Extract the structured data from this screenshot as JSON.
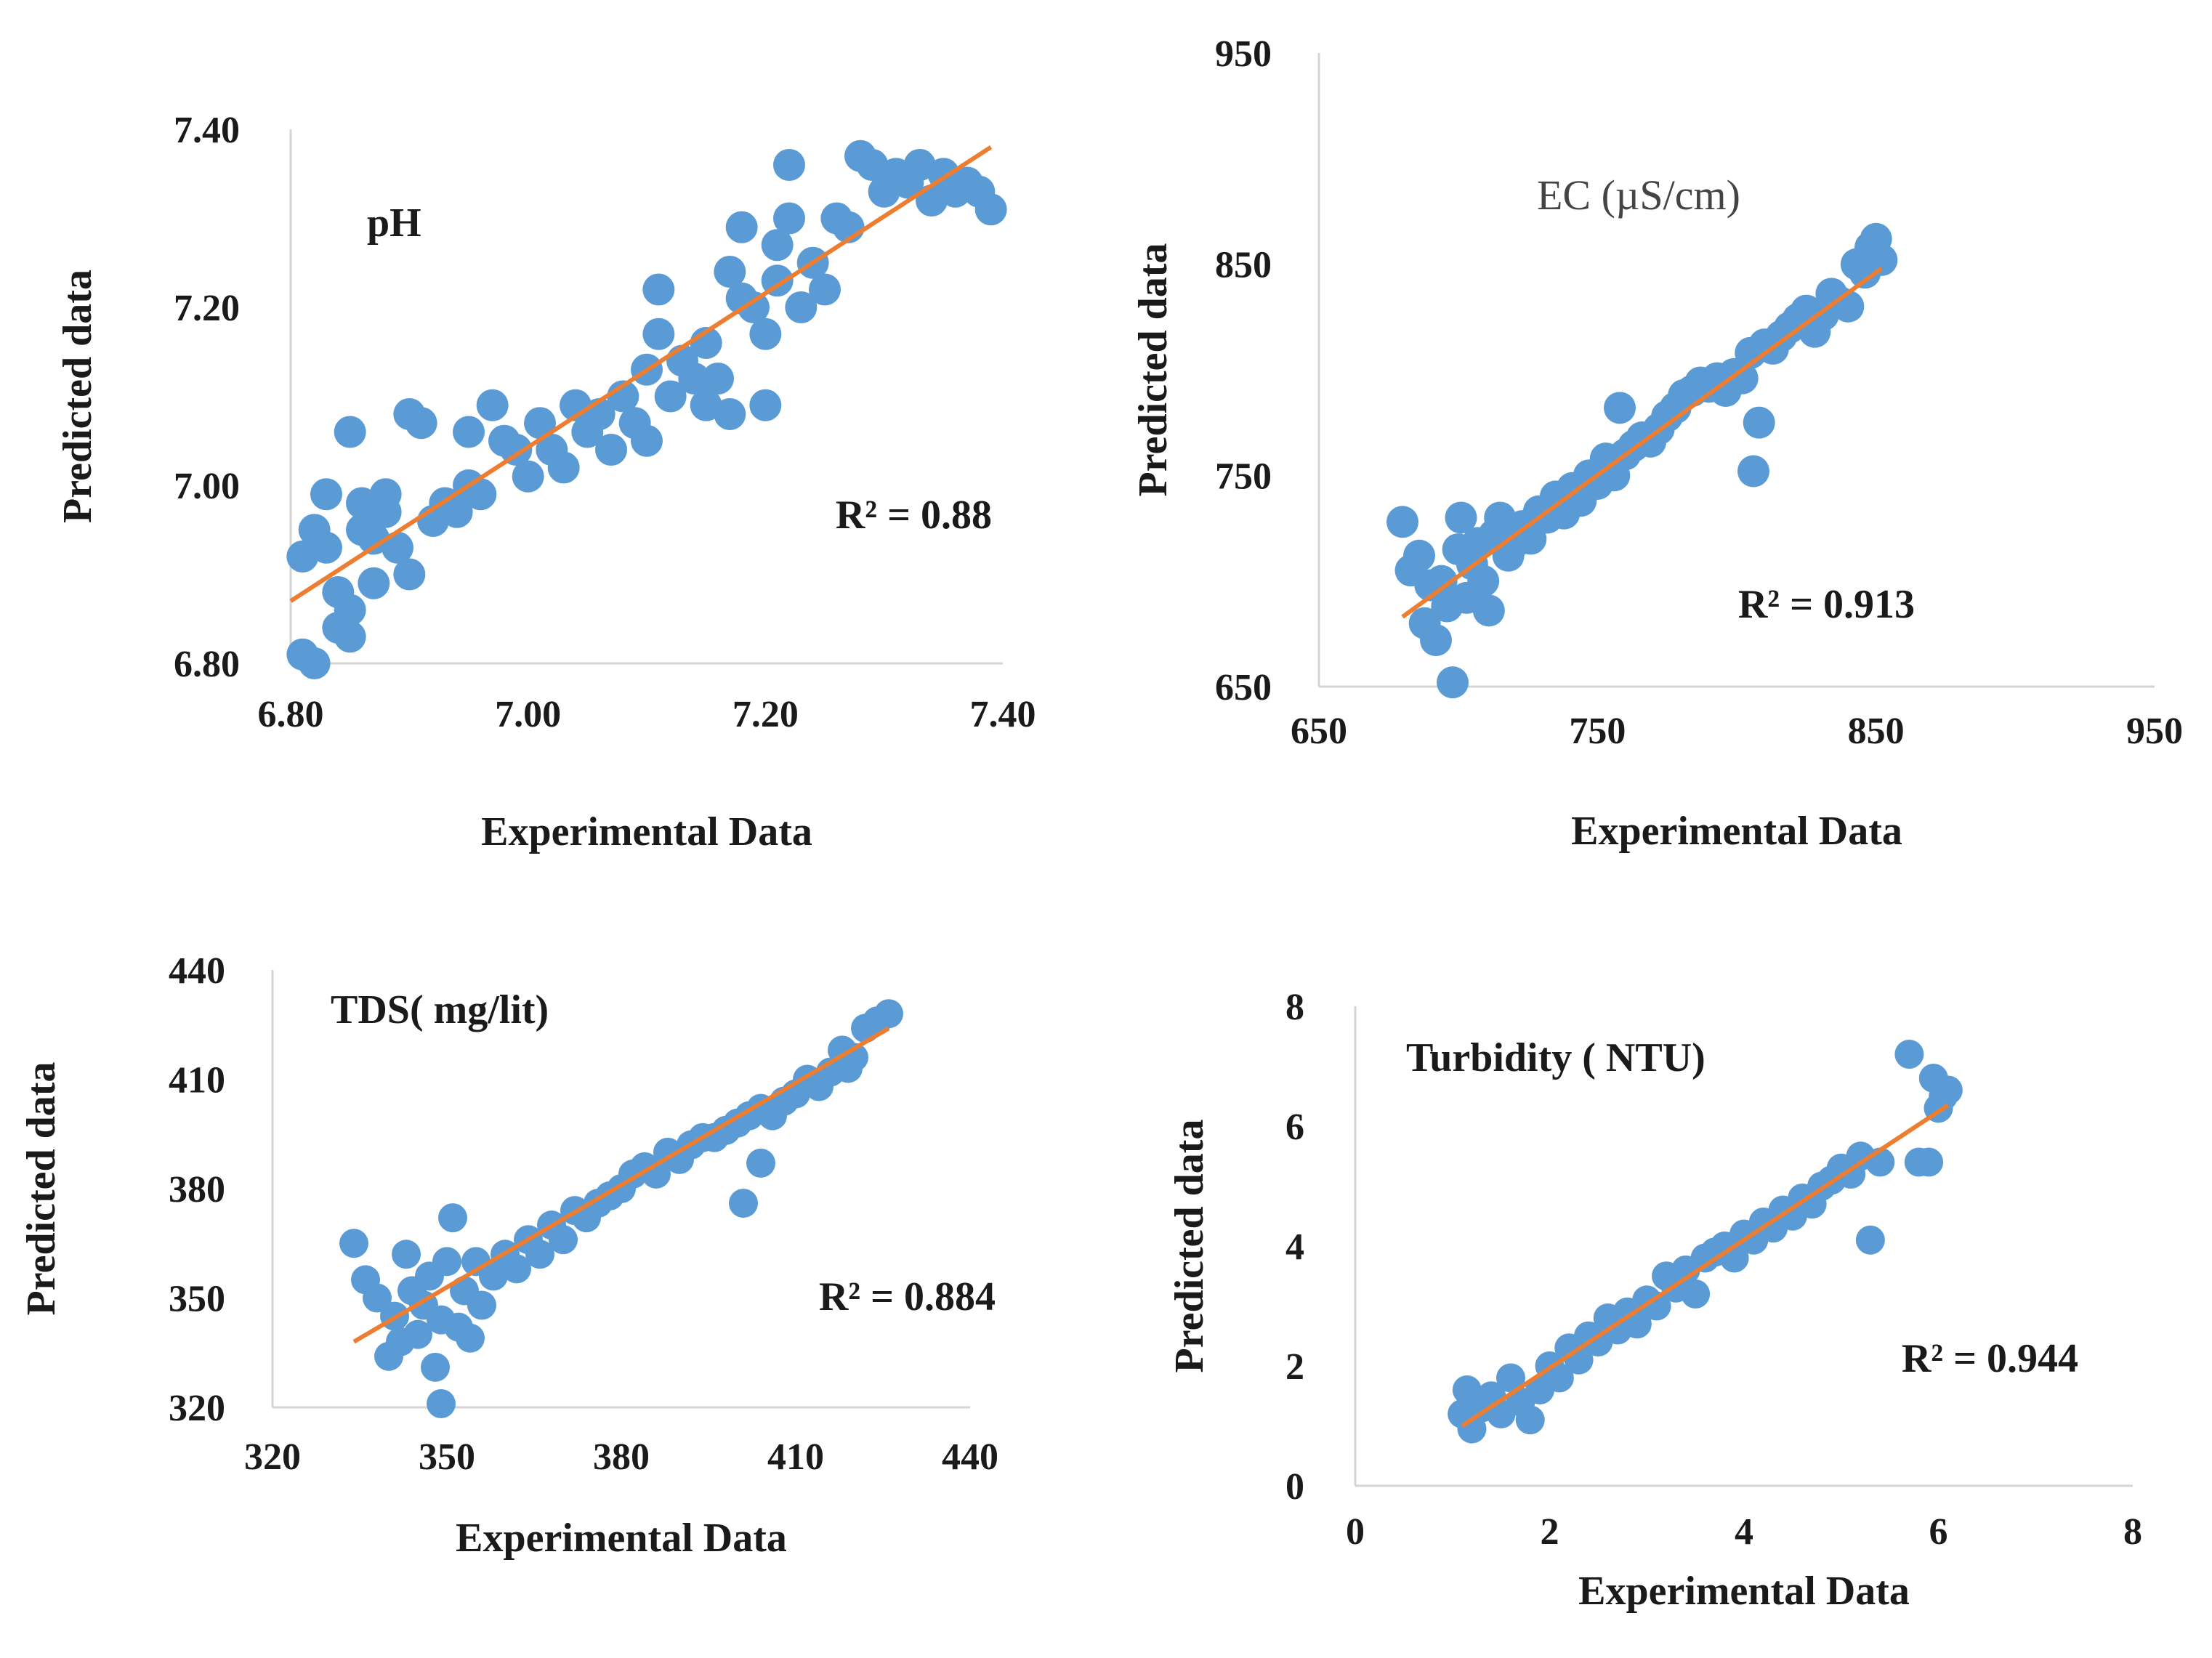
{
  "chart_data": [
    {
      "type": "scatter",
      "title": "pH",
      "title_style": "bold",
      "xlabel": "Experimental Data",
      "ylabel": "Predicted data",
      "xlim": [
        6.8,
        7.4
      ],
      "ylim": [
        6.8,
        7.4
      ],
      "xticks": [
        "6.80",
        "7.00",
        "7.20",
        "7.40"
      ],
      "yticks": [
        "6.80",
        "7.00",
        "7.20",
        "7.40"
      ],
      "r2": "R² = 0.88",
      "point_color": "#5b9bd5",
      "trend_color": "#ed7d31",
      "trendline": [
        [
          6.8,
          6.87
        ],
        [
          7.39,
          7.38
        ]
      ],
      "points": [
        [
          6.81,
          6.81
        ],
        [
          6.82,
          6.8
        ],
        [
          6.81,
          6.92
        ],
        [
          6.82,
          6.95
        ],
        [
          6.83,
          6.93
        ],
        [
          6.83,
          6.99
        ],
        [
          6.84,
          6.88
        ],
        [
          6.84,
          6.84
        ],
        [
          6.85,
          6.83
        ],
        [
          6.85,
          6.86
        ],
        [
          6.85,
          7.06
        ],
        [
          6.86,
          6.95
        ],
        [
          6.86,
          6.98
        ],
        [
          6.87,
          6.89
        ],
        [
          6.87,
          6.94
        ],
        [
          6.88,
          6.97
        ],
        [
          6.88,
          6.99
        ],
        [
          6.89,
          6.93
        ],
        [
          6.9,
          7.08
        ],
        [
          6.91,
          7.07
        ],
        [
          6.9,
          6.9
        ],
        [
          6.92,
          6.96
        ],
        [
          6.93,
          6.98
        ],
        [
          6.94,
          6.97
        ],
        [
          6.95,
          7.0
        ],
        [
          6.95,
          7.06
        ],
        [
          6.96,
          6.99
        ],
        [
          6.97,
          7.09
        ],
        [
          6.98,
          7.05
        ],
        [
          6.99,
          7.04
        ],
        [
          7.0,
          7.01
        ],
        [
          7.01,
          7.07
        ],
        [
          7.02,
          7.04
        ],
        [
          7.03,
          7.02
        ],
        [
          7.04,
          7.09
        ],
        [
          7.05,
          7.06
        ],
        [
          7.06,
          7.08
        ],
        [
          7.07,
          7.04
        ],
        [
          7.08,
          7.1
        ],
        [
          7.09,
          7.07
        ],
        [
          7.1,
          7.13
        ],
        [
          7.1,
          7.05
        ],
        [
          7.11,
          7.22
        ],
        [
          7.11,
          7.17
        ],
        [
          7.12,
          7.1
        ],
        [
          7.13,
          7.14
        ],
        [
          7.14,
          7.12
        ],
        [
          7.15,
          7.16
        ],
        [
          7.15,
          7.09
        ],
        [
          7.16,
          7.12
        ],
        [
          7.17,
          7.08
        ],
        [
          7.17,
          7.24
        ],
        [
          7.18,
          7.21
        ],
        [
          7.18,
          7.29
        ],
        [
          7.19,
          7.2
        ],
        [
          7.2,
          7.17
        ],
        [
          7.2,
          7.09
        ],
        [
          7.21,
          7.27
        ],
        [
          7.21,
          7.23
        ],
        [
          7.22,
          7.36
        ],
        [
          7.22,
          7.3
        ],
        [
          7.23,
          7.2
        ],
        [
          7.24,
          7.25
        ],
        [
          7.25,
          7.22
        ],
        [
          7.26,
          7.3
        ],
        [
          7.27,
          7.29
        ],
        [
          7.28,
          7.37
        ],
        [
          7.29,
          7.36
        ],
        [
          7.3,
          7.33
        ],
        [
          7.31,
          7.35
        ],
        [
          7.32,
          7.34
        ],
        [
          7.33,
          7.36
        ],
        [
          7.34,
          7.32
        ],
        [
          7.35,
          7.35
        ],
        [
          7.36,
          7.33
        ],
        [
          7.37,
          7.34
        ],
        [
          7.38,
          7.33
        ],
        [
          7.39,
          7.31
        ]
      ]
    },
    {
      "type": "scatter",
      "title": "EC (µS/cm)",
      "title_style": "normal",
      "xlabel": "Experimental Data",
      "ylabel": "Predicted data",
      "xlim": [
        650,
        950
      ],
      "ylim": [
        650,
        950
      ],
      "xticks": [
        "650",
        "750",
        "850",
        "950"
      ],
      "yticks": [
        "650",
        "750",
        "850",
        "950"
      ],
      "r2": "R² = 0.913",
      "point_color": "#5b9bd5",
      "trend_color": "#ed7d31",
      "trendline": [
        [
          680,
          683
        ],
        [
          852,
          848
        ]
      ],
      "points": [
        [
          680,
          728
        ],
        [
          683,
          705
        ],
        [
          686,
          712
        ],
        [
          688,
          680
        ],
        [
          690,
          698
        ],
        [
          692,
          672
        ],
        [
          694,
          700
        ],
        [
          696,
          688
        ],
        [
          698,
          652
        ],
        [
          700,
          715
        ],
        [
          701,
          730
        ],
        [
          703,
          692
        ],
        [
          705,
          708
        ],
        [
          707,
          718
        ],
        [
          709,
          700
        ],
        [
          711,
          686
        ],
        [
          713,
          722
        ],
        [
          715,
          730
        ],
        [
          718,
          712
        ],
        [
          720,
          718
        ],
        [
          723,
          726
        ],
        [
          726,
          720
        ],
        [
          729,
          733
        ],
        [
          732,
          730
        ],
        [
          735,
          740
        ],
        [
          738,
          732
        ],
        [
          741,
          744
        ],
        [
          744,
          738
        ],
        [
          747,
          750
        ],
        [
          750,
          746
        ],
        [
          753,
          758
        ],
        [
          756,
          750
        ],
        [
          758,
          782
        ],
        [
          760,
          760
        ],
        [
          763,
          764
        ],
        [
          766,
          768
        ],
        [
          769,
          766
        ],
        [
          772,
          772
        ],
        [
          775,
          778
        ],
        [
          778,
          782
        ],
        [
          781,
          788
        ],
        [
          784,
          790
        ],
        [
          787,
          794
        ],
        [
          790,
          792
        ],
        [
          793,
          796
        ],
        [
          796,
          790
        ],
        [
          799,
          798
        ],
        [
          802,
          796
        ],
        [
          805,
          808
        ],
        [
          806,
          752
        ],
        [
          808,
          775
        ],
        [
          810,
          812
        ],
        [
          813,
          810
        ],
        [
          816,
          816
        ],
        [
          819,
          820
        ],
        [
          822,
          824
        ],
        [
          825,
          828
        ],
        [
          828,
          818
        ],
        [
          831,
          826
        ],
        [
          834,
          836
        ],
        [
          837,
          832
        ],
        [
          840,
          830
        ],
        [
          843,
          850
        ],
        [
          846,
          846
        ],
        [
          848,
          858
        ],
        [
          850,
          862
        ],
        [
          852,
          852
        ]
      ]
    },
    {
      "type": "scatter",
      "title": "TDS( mg/lit)",
      "title_style": "bold",
      "xlabel": "Experimental Data",
      "ylabel": "Predicted data",
      "xlim": [
        320,
        440
      ],
      "ylim": [
        320,
        440
      ],
      "xticks": [
        "320",
        "350",
        "380",
        "410",
        "440"
      ],
      "yticks": [
        "320",
        "350",
        "380",
        "410",
        "440"
      ],
      "r2": "R² = 0.884",
      "point_color": "#5b9bd5",
      "trend_color": "#ed7d31",
      "trendline": [
        [
          334,
          338
        ],
        [
          426,
          424
        ]
      ],
      "points": [
        [
          334,
          365
        ],
        [
          336,
          355
        ],
        [
          338,
          350
        ],
        [
          340,
          334
        ],
        [
          341,
          345
        ],
        [
          342,
          338
        ],
        [
          343,
          362
        ],
        [
          344,
          352
        ],
        [
          345,
          340
        ],
        [
          346,
          348
        ],
        [
          347,
          356
        ],
        [
          348,
          331
        ],
        [
          349,
          321
        ],
        [
          349,
          344
        ],
        [
          350,
          360
        ],
        [
          351,
          372
        ],
        [
          352,
          342
        ],
        [
          353,
          352
        ],
        [
          354,
          339
        ],
        [
          355,
          360
        ],
        [
          356,
          348
        ],
        [
          358,
          356
        ],
        [
          360,
          362
        ],
        [
          362,
          358
        ],
        [
          364,
          366
        ],
        [
          366,
          362
        ],
        [
          368,
          370
        ],
        [
          370,
          366
        ],
        [
          372,
          374
        ],
        [
          374,
          372
        ],
        [
          376,
          376
        ],
        [
          378,
          378
        ],
        [
          380,
          380
        ],
        [
          382,
          384
        ],
        [
          384,
          386
        ],
        [
          386,
          384
        ],
        [
          388,
          390
        ],
        [
          390,
          388
        ],
        [
          392,
          392
        ],
        [
          394,
          394
        ],
        [
          396,
          394
        ],
        [
          398,
          396
        ],
        [
          400,
          398
        ],
        [
          401,
          376
        ],
        [
          402,
          400
        ],
        [
          404,
          387
        ],
        [
          404,
          402
        ],
        [
          406,
          400
        ],
        [
          408,
          404
        ],
        [
          410,
          406
        ],
        [
          412,
          410
        ],
        [
          414,
          408
        ],
        [
          416,
          412
        ],
        [
          418,
          418
        ],
        [
          419,
          413
        ],
        [
          420,
          416
        ],
        [
          422,
          424
        ],
        [
          424,
          426
        ],
        [
          426,
          428
        ]
      ]
    },
    {
      "type": "scatter",
      "title": "Turbidity ( NTU)",
      "title_style": "bold",
      "xlabel": "Experimental Data",
      "ylabel": "Predicted data",
      "xlim": [
        0,
        8
      ],
      "ylim": [
        0,
        8
      ],
      "xticks": [
        "0",
        "2",
        "4",
        "6",
        "8"
      ],
      "yticks": [
        "0",
        "2",
        "4",
        "6",
        "8"
      ],
      "r2": "R² = 0.944",
      "point_color": "#5b9bd5",
      "trend_color": "#ed7d31",
      "trendline": [
        [
          1.1,
          1.0
        ],
        [
          6.1,
          6.35
        ]
      ],
      "points": [
        [
          1.1,
          1.2
        ],
        [
          1.15,
          1.6
        ],
        [
          1.2,
          0.95
        ],
        [
          1.3,
          1.3
        ],
        [
          1.4,
          1.5
        ],
        [
          1.5,
          1.2
        ],
        [
          1.6,
          1.8
        ],
        [
          1.7,
          1.4
        ],
        [
          1.8,
          1.1
        ],
        [
          1.9,
          1.6
        ],
        [
          2.0,
          2.0
        ],
        [
          2.1,
          1.8
        ],
        [
          2.2,
          2.3
        ],
        [
          2.3,
          2.1
        ],
        [
          2.4,
          2.5
        ],
        [
          2.5,
          2.4
        ],
        [
          2.6,
          2.8
        ],
        [
          2.7,
          2.6
        ],
        [
          2.8,
          2.9
        ],
        [
          2.9,
          2.7
        ],
        [
          3.0,
          3.1
        ],
        [
          3.1,
          3.0
        ],
        [
          3.2,
          3.5
        ],
        [
          3.3,
          3.3
        ],
        [
          3.4,
          3.6
        ],
        [
          3.5,
          3.2
        ],
        [
          3.6,
          3.8
        ],
        [
          3.7,
          3.9
        ],
        [
          3.8,
          4.0
        ],
        [
          3.9,
          3.8
        ],
        [
          4.0,
          4.2
        ],
        [
          4.1,
          4.1
        ],
        [
          4.2,
          4.4
        ],
        [
          4.3,
          4.3
        ],
        [
          4.4,
          4.6
        ],
        [
          4.5,
          4.5
        ],
        [
          4.6,
          4.8
        ],
        [
          4.7,
          4.7
        ],
        [
          4.8,
          5.0
        ],
        [
          4.9,
          5.1
        ],
        [
          5.0,
          5.3
        ],
        [
          5.1,
          5.2
        ],
        [
          5.2,
          5.5
        ],
        [
          5.3,
          4.1
        ],
        [
          5.4,
          5.4
        ],
        [
          5.7,
          7.2
        ],
        [
          5.8,
          5.4
        ],
        [
          5.9,
          5.4
        ],
        [
          5.95,
          6.8
        ],
        [
          6.0,
          6.3
        ],
        [
          6.05,
          6.5
        ],
        [
          6.1,
          6.6
        ]
      ]
    }
  ]
}
